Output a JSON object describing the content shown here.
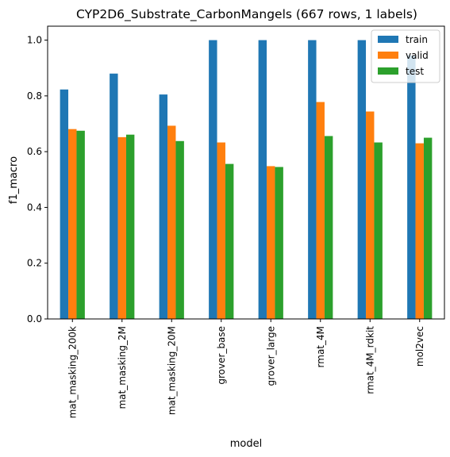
{
  "chart_data": {
    "type": "bar",
    "title": "CYP2D6_Substrate_CarbonMangels (667 rows, 1 labels)",
    "xlabel": "model",
    "ylabel": "f1_macro",
    "ylim": [
      0,
      1.05
    ],
    "yticks": [
      0.0,
      0.2,
      0.4,
      0.6,
      0.8,
      1.0
    ],
    "ytick_labels": [
      "0.0",
      "0.2",
      "0.4",
      "0.6",
      "0.8",
      "1.0"
    ],
    "grid": false,
    "legend_position": "top-right",
    "categories": [
      "mat_masking_200k",
      "mat_masking_2M",
      "mat_masking_20M",
      "grover_base",
      "grover_large",
      "rmat_4M",
      "rmat_4M_rdkit",
      "mol2vec"
    ],
    "series": [
      {
        "name": "train",
        "color": "#1f77b4",
        "values": [
          0.823,
          0.88,
          0.805,
          1.0,
          1.0,
          1.0,
          1.0,
          0.945
        ]
      },
      {
        "name": "valid",
        "color": "#ff7f0e",
        "values": [
          0.681,
          0.652,
          0.693,
          0.633,
          0.548,
          0.778,
          0.744,
          0.63
        ]
      },
      {
        "name": "test",
        "color": "#2ca02c",
        "values": [
          0.675,
          0.661,
          0.638,
          0.556,
          0.545,
          0.656,
          0.633,
          0.65
        ]
      }
    ]
  }
}
